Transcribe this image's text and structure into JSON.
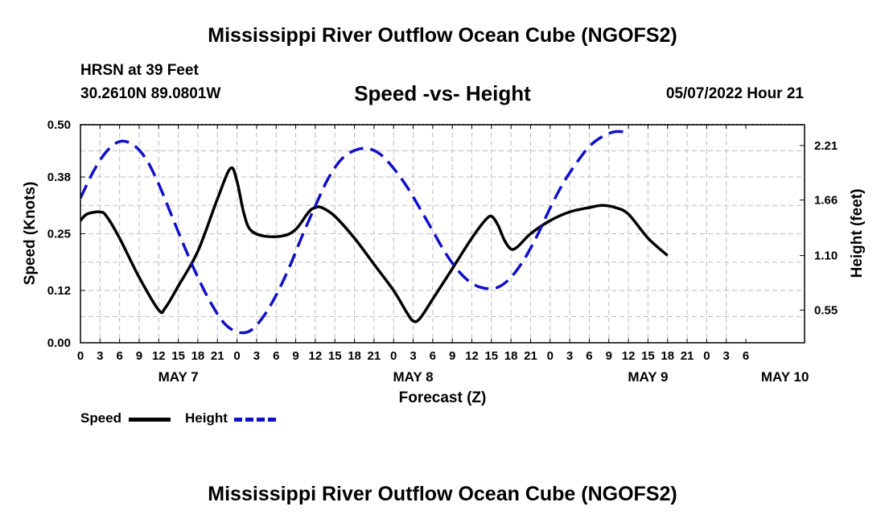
{
  "header": {
    "main_title": "Mississippi River Outflow Ocean Cube (NGOFS2)",
    "station": "HRSN at 39 Feet",
    "coords": "30.2610N  89.0801W",
    "subtitle": "Speed -vs- Height",
    "datetime": "05/07/2022 Hour 21",
    "bottom_title": "Mississippi River Outflow Ocean Cube (NGOFS2)"
  },
  "legend": {
    "speed_label": "Speed",
    "height_label": "Height"
  },
  "colors": {
    "speed": "#000000",
    "height": "#1010c8",
    "grid": "#bbbbbb"
  },
  "chart_data": {
    "type": "line",
    "title": "Speed -vs- Height",
    "xlabel": "Forecast (Z)",
    "ylabel": "Speed (Knots)",
    "y2label": "Height (feet)",
    "x_range_hours": [
      0,
      111
    ],
    "ylim": [
      0,
      0.5
    ],
    "y2lim": [
      0.22,
      2.42
    ],
    "yticks": [
      "0.00",
      "0.12",
      "0.25",
      "0.38",
      "0.50"
    ],
    "y2ticks": [
      "0.55",
      "1.10",
      "1.66",
      "2.21"
    ],
    "y2tick_values": [
      0.55,
      1.1,
      1.66,
      2.21
    ],
    "xtick_labels": [
      "0",
      "3",
      "6",
      "9",
      "12",
      "15",
      "18",
      "21",
      "0",
      "3",
      "6",
      "9",
      "12",
      "15",
      "18",
      "21",
      "0",
      "3",
      "6",
      "9",
      "12",
      "15",
      "18",
      "21",
      "0",
      "3",
      "6",
      "9",
      "12",
      "15",
      "18",
      "21",
      "0",
      "3",
      "6"
    ],
    "day_labels": [
      {
        "label": "MAY 7",
        "hour": 15
      },
      {
        "label": "MAY 8",
        "hour": 51
      },
      {
        "label": "MAY 9",
        "hour": 87
      },
      {
        "label": "MAY 10",
        "hour": 108
      }
    ],
    "grid": true,
    "legend_position": "bottom-left",
    "series": [
      {
        "name": "Speed",
        "axis": "left",
        "style": "solid",
        "points": [
          [
            0,
            0.28
          ],
          [
            1,
            0.295
          ],
          [
            3,
            0.3
          ],
          [
            4,
            0.29
          ],
          [
            6,
            0.24
          ],
          [
            9,
            0.15
          ],
          [
            12,
            0.075
          ],
          [
            13,
            0.08
          ],
          [
            15,
            0.13
          ],
          [
            18,
            0.21
          ],
          [
            21,
            0.33
          ],
          [
            23,
            0.4
          ],
          [
            24,
            0.37
          ],
          [
            25,
            0.3
          ],
          [
            26,
            0.26
          ],
          [
            28,
            0.245
          ],
          [
            31,
            0.245
          ],
          [
            33,
            0.26
          ],
          [
            35,
            0.3
          ],
          [
            36,
            0.31
          ],
          [
            37,
            0.31
          ],
          [
            39,
            0.29
          ],
          [
            42,
            0.24
          ],
          [
            45,
            0.18
          ],
          [
            48,
            0.12
          ],
          [
            50,
            0.07
          ],
          [
            51,
            0.05
          ],
          [
            52,
            0.055
          ],
          [
            54,
            0.1
          ],
          [
            57,
            0.17
          ],
          [
            60,
            0.24
          ],
          [
            62,
            0.28
          ],
          [
            63,
            0.29
          ],
          [
            64,
            0.27
          ],
          [
            65,
            0.235
          ],
          [
            66,
            0.215
          ],
          [
            67,
            0.22
          ],
          [
            69,
            0.25
          ],
          [
            72,
            0.28
          ],
          [
            75,
            0.3
          ],
          [
            78,
            0.31
          ],
          [
            80,
            0.315
          ],
          [
            82,
            0.31
          ],
          [
            84,
            0.295
          ],
          [
            87,
            0.24
          ],
          [
            90,
            0.2
          ]
        ]
      },
      {
        "name": "Height",
        "axis": "right",
        "style": "dashed",
        "points": [
          [
            0,
            1.68
          ],
          [
            2,
            1.95
          ],
          [
            4,
            2.15
          ],
          [
            6,
            2.25
          ],
          [
            8,
            2.22
          ],
          [
            10,
            2.08
          ],
          [
            12,
            1.82
          ],
          [
            14,
            1.5
          ],
          [
            16,
            1.18
          ],
          [
            18,
            0.88
          ],
          [
            20,
            0.62
          ],
          [
            22,
            0.42
          ],
          [
            24,
            0.33
          ],
          [
            26,
            0.34
          ],
          [
            28,
            0.48
          ],
          [
            30,
            0.7
          ],
          [
            32,
            0.98
          ],
          [
            34,
            1.3
          ],
          [
            36,
            1.6
          ],
          [
            38,
            1.88
          ],
          [
            40,
            2.07
          ],
          [
            42,
            2.16
          ],
          [
            44,
            2.18
          ],
          [
            46,
            2.12
          ],
          [
            48,
            1.98
          ],
          [
            50,
            1.8
          ],
          [
            52,
            1.58
          ],
          [
            54,
            1.35
          ],
          [
            56,
            1.12
          ],
          [
            58,
            0.94
          ],
          [
            60,
            0.82
          ],
          [
            62,
            0.77
          ],
          [
            64,
            0.78
          ],
          [
            66,
            0.88
          ],
          [
            68,
            1.06
          ],
          [
            70,
            1.3
          ],
          [
            72,
            1.58
          ],
          [
            74,
            1.83
          ],
          [
            76,
            2.03
          ],
          [
            78,
            2.2
          ],
          [
            80,
            2.3
          ],
          [
            82,
            2.35
          ],
          [
            84,
            2.34
          ]
        ]
      }
    ]
  }
}
